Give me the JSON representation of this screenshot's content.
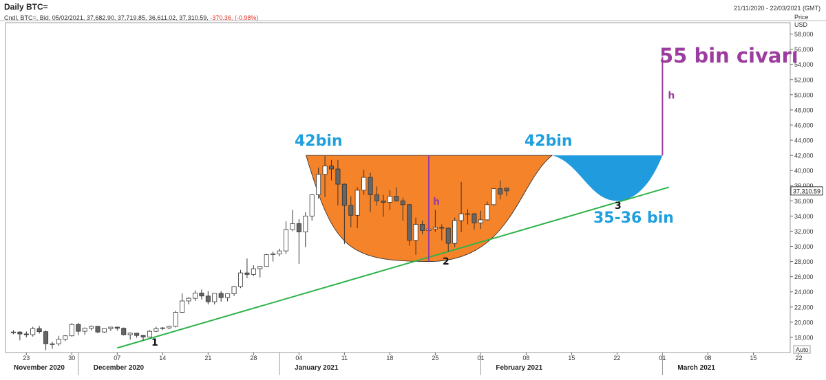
{
  "header": {
    "title": "Daily BTC=",
    "date_range": "21/11/2020 - 22/03/2021 (GMT)",
    "ohlc_prefix": "Cndl, BTC=, Bid, 05/02/2021, 37,682.90, 37,719.85, 36,611.02, 37,310.59,",
    "change": "-370.36, (-0.98%)"
  },
  "chart_data": {
    "type": "candlestick",
    "price_axis_title": "Price",
    "currency": "USD",
    "y_ticks": [
      18000,
      20000,
      22000,
      24000,
      26000,
      28000,
      30000,
      32000,
      34000,
      36000,
      38000,
      40000,
      42000,
      44000,
      46000,
      48000,
      50000,
      52000,
      54000,
      56000,
      58000
    ],
    "y_tick_labels": [
      "18,000",
      "20,000",
      "22,000",
      "24,000",
      "26,000",
      "28,000",
      "30,000",
      "32,000",
      "34,000",
      "36,000",
      "38,000",
      "40,000",
      "42,000",
      "44,000",
      "46,000",
      "48,000",
      "50,000",
      "52,000",
      "54,000",
      "56,000",
      "58,000"
    ],
    "ylim": [
      16000,
      59500
    ],
    "xlim": [
      "2020-11-20",
      "2021-03-22"
    ],
    "x_ticks": [
      {
        "date": "2020-11-23",
        "label": "23"
      },
      {
        "date": "2020-11-30",
        "label": "30"
      },
      {
        "date": "2020-12-07",
        "label": "07"
      },
      {
        "date": "2020-12-14",
        "label": "14"
      },
      {
        "date": "2020-12-21",
        "label": "21"
      },
      {
        "date": "2020-12-28",
        "label": "28"
      },
      {
        "date": "2021-01-04",
        "label": "04"
      },
      {
        "date": "2021-01-11",
        "label": "11"
      },
      {
        "date": "2021-01-18",
        "label": "18"
      },
      {
        "date": "2021-01-25",
        "label": "25"
      },
      {
        "date": "2021-02-01",
        "label": "01"
      },
      {
        "date": "2021-02-08",
        "label": "08"
      },
      {
        "date": "2021-02-15",
        "label": "15"
      },
      {
        "date": "2021-02-22",
        "label": "22"
      },
      {
        "date": "2021-03-01",
        "label": "01"
      },
      {
        "date": "2021-03-08",
        "label": "08"
      },
      {
        "date": "2021-03-15",
        "label": "15"
      },
      {
        "date": "2021-03-22",
        "label": "22"
      }
    ],
    "months": [
      {
        "date": "2020-11-20",
        "label": "November 2020"
      },
      {
        "date": "2020-12-01",
        "label": "December 2020"
      },
      {
        "date": "2021-01-01",
        "label": "January 2021"
      },
      {
        "date": "2021-02-01",
        "label": "February 2021"
      },
      {
        "date": "2021-03-01",
        "label": "March 2021"
      }
    ],
    "last_price_label": "37,310.59",
    "last_price": 37310.59,
    "auto_label": "Auto",
    "candles": [
      {
        "date": "2020-11-21",
        "o": 18650,
        "h": 18950,
        "l": 18400,
        "c": 18700
      },
      {
        "date": "2020-11-22",
        "o": 18700,
        "h": 18800,
        "l": 17600,
        "c": 18450
      },
      {
        "date": "2020-11-23",
        "o": 18450,
        "h": 18780,
        "l": 18000,
        "c": 18350
      },
      {
        "date": "2020-11-24",
        "o": 18350,
        "h": 19400,
        "l": 18100,
        "c": 19150
      },
      {
        "date": "2020-11-25",
        "o": 19150,
        "h": 19500,
        "l": 18500,
        "c": 18750
      },
      {
        "date": "2020-11-26",
        "o": 18750,
        "h": 18900,
        "l": 16300,
        "c": 17150
      },
      {
        "date": "2020-11-27",
        "o": 17150,
        "h": 17400,
        "l": 16500,
        "c": 17150
      },
      {
        "date": "2020-11-28",
        "o": 17150,
        "h": 18200,
        "l": 16900,
        "c": 17750
      },
      {
        "date": "2020-11-29",
        "o": 17750,
        "h": 18300,
        "l": 17500,
        "c": 18200
      },
      {
        "date": "2020-11-30",
        "o": 18200,
        "h": 19850,
        "l": 18100,
        "c": 19700
      },
      {
        "date": "2020-12-01",
        "o": 19700,
        "h": 19900,
        "l": 18300,
        "c": 18800
      },
      {
        "date": "2020-12-02",
        "o": 18800,
        "h": 19300,
        "l": 18350,
        "c": 19200
      },
      {
        "date": "2020-12-03",
        "o": 19200,
        "h": 19550,
        "l": 18900,
        "c": 19450
      },
      {
        "date": "2020-12-04",
        "o": 19450,
        "h": 19500,
        "l": 18550,
        "c": 18700
      },
      {
        "date": "2020-12-05",
        "o": 18700,
        "h": 19200,
        "l": 18600,
        "c": 19150
      },
      {
        "date": "2020-12-06",
        "o": 19150,
        "h": 19400,
        "l": 18850,
        "c": 19350
      },
      {
        "date": "2020-12-07",
        "o": 19350,
        "h": 19400,
        "l": 18900,
        "c": 19200
      },
      {
        "date": "2020-12-08",
        "o": 19200,
        "h": 19300,
        "l": 18250,
        "c": 18350
      },
      {
        "date": "2020-12-09",
        "o": 18350,
        "h": 18650,
        "l": 17700,
        "c": 18550
      },
      {
        "date": "2020-12-10",
        "o": 18550,
        "h": 18600,
        "l": 17950,
        "c": 18250
      },
      {
        "date": "2020-12-11",
        "o": 18250,
        "h": 18300,
        "l": 17600,
        "c": 18050
      },
      {
        "date": "2020-12-12",
        "o": 18050,
        "h": 18950,
        "l": 18000,
        "c": 18800
      },
      {
        "date": "2020-12-13",
        "o": 18800,
        "h": 19400,
        "l": 18700,
        "c": 19150
      },
      {
        "date": "2020-12-14",
        "o": 19150,
        "h": 19350,
        "l": 18950,
        "c": 19250
      },
      {
        "date": "2020-12-15",
        "o": 19250,
        "h": 19550,
        "l": 19050,
        "c": 19450
      },
      {
        "date": "2020-12-16",
        "o": 19450,
        "h": 21500,
        "l": 19300,
        "c": 21300
      },
      {
        "date": "2020-12-17",
        "o": 21300,
        "h": 23800,
        "l": 21200,
        "c": 22800
      },
      {
        "date": "2020-12-18",
        "o": 22800,
        "h": 23300,
        "l": 22350,
        "c": 23150
      },
      {
        "date": "2020-12-19",
        "o": 23150,
        "h": 24200,
        "l": 22800,
        "c": 23850
      },
      {
        "date": "2020-12-20",
        "o": 23850,
        "h": 24300,
        "l": 23000,
        "c": 23450
      },
      {
        "date": "2020-12-21",
        "o": 23450,
        "h": 24100,
        "l": 22350,
        "c": 22700
      },
      {
        "date": "2020-12-22",
        "o": 22700,
        "h": 23800,
        "l": 22350,
        "c": 23800
      },
      {
        "date": "2020-12-23",
        "o": 23800,
        "h": 24100,
        "l": 22700,
        "c": 23250
      },
      {
        "date": "2020-12-24",
        "o": 23250,
        "h": 23800,
        "l": 22750,
        "c": 23750
      },
      {
        "date": "2020-12-25",
        "o": 23750,
        "h": 24800,
        "l": 23450,
        "c": 24700
      },
      {
        "date": "2020-12-26",
        "o": 24700,
        "h": 26900,
        "l": 24500,
        "c": 26500
      },
      {
        "date": "2020-12-27",
        "o": 26500,
        "h": 28400,
        "l": 25800,
        "c": 26300
      },
      {
        "date": "2020-12-28",
        "o": 26300,
        "h": 27500,
        "l": 26100,
        "c": 27050
      },
      {
        "date": "2020-12-29",
        "o": 27050,
        "h": 27400,
        "l": 25900,
        "c": 27350
      },
      {
        "date": "2020-12-30",
        "o": 27350,
        "h": 29000,
        "l": 27300,
        "c": 28900
      },
      {
        "date": "2020-12-31",
        "o": 28900,
        "h": 29300,
        "l": 28000,
        "c": 29000
      },
      {
        "date": "2021-01-01",
        "o": 29000,
        "h": 29700,
        "l": 28700,
        "c": 29400
      },
      {
        "date": "2021-01-02",
        "o": 29400,
        "h": 33300,
        "l": 29000,
        "c": 32200
      },
      {
        "date": "2021-01-03",
        "o": 32200,
        "h": 34800,
        "l": 32000,
        "c": 33000
      },
      {
        "date": "2021-01-04",
        "o": 33000,
        "h": 33600,
        "l": 27700,
        "c": 31900
      },
      {
        "date": "2021-01-05",
        "o": 31900,
        "h": 34500,
        "l": 29900,
        "c": 34000
      },
      {
        "date": "2021-01-06",
        "o": 34000,
        "h": 36900,
        "l": 33400,
        "c": 36800
      },
      {
        "date": "2021-01-07",
        "o": 36800,
        "h": 40400,
        "l": 36300,
        "c": 39500
      },
      {
        "date": "2021-01-08",
        "o": 39500,
        "h": 41900,
        "l": 36500,
        "c": 40600
      },
      {
        "date": "2021-01-09",
        "o": 40600,
        "h": 41400,
        "l": 38700,
        "c": 40200
      },
      {
        "date": "2021-01-10",
        "o": 40200,
        "h": 41400,
        "l": 35400,
        "c": 38200
      },
      {
        "date": "2021-01-11",
        "o": 38200,
        "h": 38300,
        "l": 30300,
        "c": 35400
      },
      {
        "date": "2021-01-12",
        "o": 35400,
        "h": 36600,
        "l": 32500,
        "c": 34100
      },
      {
        "date": "2021-01-13",
        "o": 34100,
        "h": 37800,
        "l": 32400,
        "c": 37400
      },
      {
        "date": "2021-01-14",
        "o": 37400,
        "h": 40100,
        "l": 36800,
        "c": 39100
      },
      {
        "date": "2021-01-15",
        "o": 39100,
        "h": 39700,
        "l": 34500,
        "c": 36800
      },
      {
        "date": "2021-01-16",
        "o": 36800,
        "h": 37900,
        "l": 35400,
        "c": 36000
      },
      {
        "date": "2021-01-17",
        "o": 36000,
        "h": 36800,
        "l": 33900,
        "c": 35800
      },
      {
        "date": "2021-01-18",
        "o": 35800,
        "h": 37400,
        "l": 34800,
        "c": 36600
      },
      {
        "date": "2021-01-19",
        "o": 36600,
        "h": 37800,
        "l": 35900,
        "c": 36000
      },
      {
        "date": "2021-01-20",
        "o": 36000,
        "h": 36400,
        "l": 33400,
        "c": 35500
      },
      {
        "date": "2021-01-21",
        "o": 35500,
        "h": 35600,
        "l": 30100,
        "c": 30800
      },
      {
        "date": "2021-01-22",
        "o": 30800,
        "h": 33800,
        "l": 28900,
        "c": 32900
      },
      {
        "date": "2021-01-23",
        "o": 32900,
        "h": 33400,
        "l": 31600,
        "c": 32100
      },
      {
        "date": "2021-01-24",
        "o": 32100,
        "h": 32900,
        "l": 31000,
        "c": 32300
      },
      {
        "date": "2021-01-25",
        "o": 32300,
        "h": 34800,
        "l": 31900,
        "c": 32500
      },
      {
        "date": "2021-01-26",
        "o": 32500,
        "h": 32900,
        "l": 30800,
        "c": 32400
      },
      {
        "date": "2021-01-27",
        "o": 32400,
        "h": 32500,
        "l": 29300,
        "c": 30400
      },
      {
        "date": "2021-01-28",
        "o": 30400,
        "h": 33800,
        "l": 29900,
        "c": 33400
      },
      {
        "date": "2021-01-29",
        "o": 33400,
        "h": 38500,
        "l": 31900,
        "c": 34300
      },
      {
        "date": "2021-01-30",
        "o": 34300,
        "h": 34900,
        "l": 32900,
        "c": 34300
      },
      {
        "date": "2021-01-31",
        "o": 34300,
        "h": 34400,
        "l": 32200,
        "c": 33100
      },
      {
        "date": "2021-02-01",
        "o": 33100,
        "h": 34700,
        "l": 32300,
        "c": 33500
      },
      {
        "date": "2021-02-02",
        "o": 33500,
        "h": 35900,
        "l": 33400,
        "c": 35500
      },
      {
        "date": "2021-02-03",
        "o": 35500,
        "h": 37700,
        "l": 35400,
        "c": 37600
      },
      {
        "date": "2021-02-04",
        "o": 37600,
        "h": 38700,
        "l": 36200,
        "c": 36900
      },
      {
        "date": "2021-02-05",
        "o": 37682.9,
        "h": 37719.85,
        "l": 36611.02,
        "c": 37310.59
      }
    ],
    "trendline": {
      "start": {
        "date": "2020-12-07",
        "price": 16600
      },
      "end": {
        "date": "2021-03-02",
        "price": 37800
      }
    },
    "cup_rim_price": 42000,
    "cup_bottom": {
      "date": "2021-01-24",
      "price": 28000
    },
    "cup_right_rim_date": "2021-02-12",
    "handle_bottom": {
      "date": "2021-02-22",
      "price": 36000
    },
    "handle_right_date": "2021-03-01",
    "target": {
      "date": "2021-03-01",
      "from_price": 42000,
      "to_price": 55000
    },
    "annotations": {
      "left_rim": "42bin",
      "right_rim": "42bin",
      "target": "55 bin civarı",
      "handle_low": "35-36 bin",
      "height_marker": "h",
      "touch_1": "1",
      "touch_2": "2",
      "touch_3": "3"
    }
  }
}
